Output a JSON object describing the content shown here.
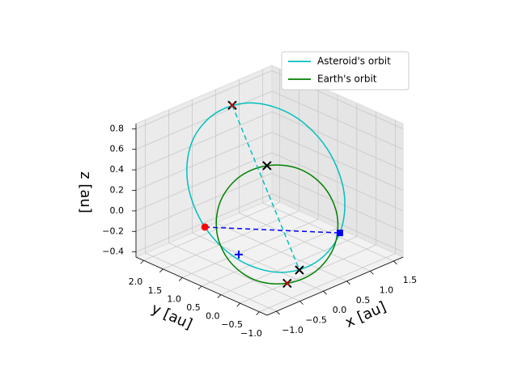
{
  "chart_data": {
    "type": "line3d",
    "xlabel": "x [au]",
    "ylabel": "y [au]",
    "zlabel": "z [au]",
    "xlim": [
      -1.2,
      1.7
    ],
    "ylim": [
      -1.2,
      2.2
    ],
    "zlim": [
      -0.45,
      0.85
    ],
    "xticks": [
      {
        "value": -1.0,
        "label": "−1.0"
      },
      {
        "value": -0.5,
        "label": "−0.5"
      },
      {
        "value": 0.0,
        "label": "0.0"
      },
      0.5,
      {
        "value": 1.0,
        "label": "1.0"
      },
      1.5
    ],
    "yticks": [
      {
        "value": -1.0,
        "label": "−1.0"
      },
      {
        "value": -0.5,
        "label": "−0.5"
      },
      {
        "value": 0.0,
        "label": "0.0"
      },
      0.5,
      {
        "value": 1.0,
        "label": "1.0"
      },
      1.5,
      {
        "value": 2.0,
        "label": "2.0"
      }
    ],
    "zticks": [
      {
        "value": -0.4,
        "label": "−0.4"
      },
      {
        "value": -0.2,
        "label": "−0.2"
      },
      {
        "value": 0.0,
        "label": "0.0"
      },
      0.2,
      0.4,
      0.6,
      0.8
    ],
    "grid": true,
    "legend": "upper right",
    "series": [
      {
        "name": "Asteroid's orbit",
        "color": "#00bfbf",
        "x": [
          1.2,
          1.03,
          0.55,
          -0.1,
          -0.75,
          -1.23,
          -1.4,
          -1.23,
          -0.75,
          -0.1,
          0.55,
          1.03
        ],
        "y": [
          0.17,
          0.82,
          1.3,
          1.47,
          1.3,
          0.82,
          0.17,
          -0.48,
          -0.96,
          -1.13,
          -0.96,
          -0.48
        ],
        "z": [
          0.48,
          0.72,
          0.86,
          0.86,
          0.73,
          0.5,
          0.22,
          -0.02,
          -0.16,
          -0.16,
          -0.03,
          0.2
        ]
      },
      {
        "name": "Earth's orbit",
        "color": "#008000",
        "x": [
          1.0,
          0.87,
          0.5,
          0.0,
          -0.5,
          -0.87,
          -1.0,
          -0.87,
          -0.5,
          0.0,
          0.5,
          0.87
        ],
        "y": [
          0.0,
          0.5,
          0.87,
          1.0,
          0.87,
          0.5,
          0.0,
          -0.5,
          -0.87,
          -1.0,
          -0.87,
          -0.5
        ],
        "z": [
          0.17,
          0.29,
          0.33,
          0.29,
          0.17,
          0.0,
          -0.17,
          -0.29,
          -0.33,
          -0.29,
          -0.17,
          0.0
        ]
      }
    ],
    "lines": [
      {
        "color": "#00bfbf",
        "x": [
          0.22,
          -0.42
        ],
        "y": [
          1.43,
          -1.09
        ],
        "z": [
          0.88,
          -0.18
        ]
      },
      {
        "color": "#0000ff",
        "x": [
          -1.4,
          0.55
        ],
        "y": [
          0.17,
          -0.96
        ],
        "z": [
          0.22,
          -0.03
        ]
      }
    ],
    "points": [
      {
        "marker": "x",
        "color": "#ff0000",
        "x": 0.22,
        "y": 1.43,
        "z": 0.88
      },
      {
        "marker": "x",
        "color": "#ff0000",
        "x": -0.5,
        "y": -0.87,
        "z": -0.33
      },
      {
        "marker": "x",
        "color": "#000000",
        "x": 0.5,
        "y": 0.87,
        "z": 0.33
      },
      {
        "marker": "x",
        "color": "#000000",
        "x": -0.42,
        "y": -1.09,
        "z": -0.18
      },
      {
        "marker": "o",
        "color": "#ff0000",
        "x": -1.4,
        "y": 0.17,
        "z": 0.22
      },
      {
        "marker": "s",
        "color": "#0000ff",
        "x": 0.55,
        "y": -0.96,
        "z": -0.03
      },
      {
        "marker": "+",
        "color": "#0000ff",
        "x": -0.9,
        "y": -0.1,
        "z": -0.1
      }
    ]
  }
}
